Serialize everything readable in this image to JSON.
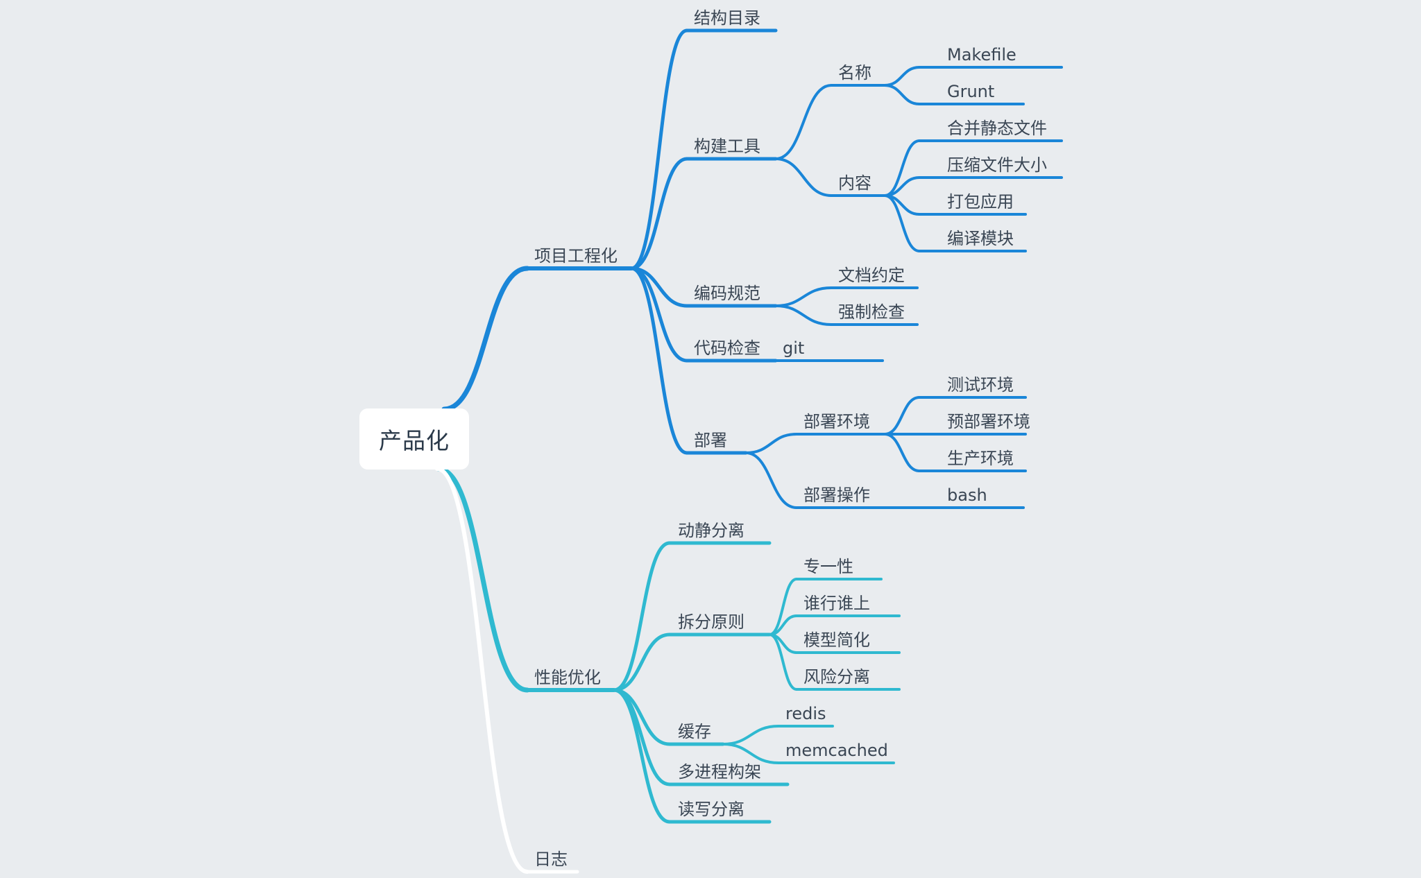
{
  "root": {
    "label": "产品化"
  },
  "colors": {
    "branch_blue": "#1a86d8",
    "branch_cyan": "#2fb9d0",
    "branch_white": "#ffffff",
    "text": "#3a4654",
    "background": "#e9ecef"
  },
  "branches": [
    {
      "label": "项目工程化",
      "color": "branch_blue",
      "children": [
        {
          "label": "结构目录"
        },
        {
          "label": "构建工具",
          "children": [
            {
              "label": "名称",
              "children": [
                {
                  "label": "Makefile"
                },
                {
                  "label": "Grunt"
                }
              ]
            },
            {
              "label": "内容",
              "children": [
                {
                  "label": "合并静态文件"
                },
                {
                  "label": "压缩文件大小"
                },
                {
                  "label": "打包应用"
                },
                {
                  "label": "编译模块"
                }
              ]
            }
          ]
        },
        {
          "label": "编码规范",
          "children": [
            {
              "label": "文档约定"
            },
            {
              "label": "强制检查"
            }
          ]
        },
        {
          "label": "代码检查",
          "children": [
            {
              "label": "git"
            }
          ]
        },
        {
          "label": "部署",
          "children": [
            {
              "label": "部署环境",
              "children": [
                {
                  "label": "测试环境"
                },
                {
                  "label": "预部署环境"
                },
                {
                  "label": "生产环境"
                }
              ]
            },
            {
              "label": "部署操作",
              "children": [
                {
                  "label": "bash"
                }
              ]
            }
          ]
        }
      ]
    },
    {
      "label": "性能优化",
      "color": "branch_cyan",
      "children": [
        {
          "label": "动静分离"
        },
        {
          "label": "拆分原则",
          "children": [
            {
              "label": "专一性"
            },
            {
              "label": "谁行谁上"
            },
            {
              "label": "模型简化"
            },
            {
              "label": "风险分离"
            }
          ]
        },
        {
          "label": "缓存",
          "children": [
            {
              "label": "redis"
            },
            {
              "label": "memcached"
            }
          ]
        },
        {
          "label": "多进程构架"
        },
        {
          "label": "读写分离"
        }
      ]
    },
    {
      "label": "日志",
      "color": "branch_white",
      "children": []
    }
  ]
}
